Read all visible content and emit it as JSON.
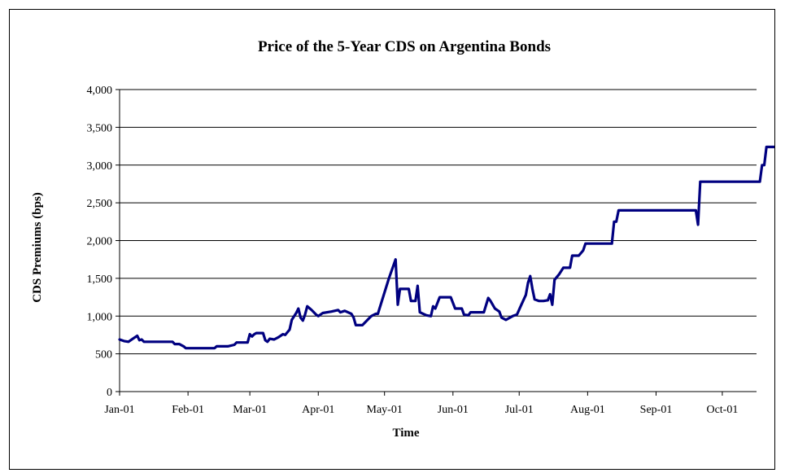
{
  "chart_data": {
    "type": "line",
    "title": "Price of the 5-Year CDS on Argentina Bonds",
    "xlabel": "Time",
    "ylabel": "CDS Premiums (bps)",
    "ylim": [
      0,
      4000
    ],
    "y_ticks": [
      "0",
      "500",
      "1,000",
      "1,500",
      "2,000",
      "2,500",
      "3,000",
      "3,500",
      "4,000"
    ],
    "x_ticks": [
      "Jan-01",
      "Feb-01",
      "Mar-01",
      "Apr-01",
      "May-01",
      "Jun-01",
      "Jul-01",
      "Aug-01",
      "Sep-01",
      "Oct-01"
    ],
    "grid": true,
    "line_color": "#000080",
    "series": [
      {
        "points": [
          [
            "2001-01-01",
            690
          ],
          [
            "2001-01-03",
            670
          ],
          [
            "2001-01-05",
            660
          ],
          [
            "2001-01-07",
            700
          ],
          [
            "2001-01-09",
            740
          ],
          [
            "2001-01-10",
            680
          ],
          [
            "2001-01-11",
            690
          ],
          [
            "2001-01-12",
            660
          ],
          [
            "2001-01-20",
            660
          ],
          [
            "2001-01-25",
            660
          ],
          [
            "2001-01-26",
            630
          ],
          [
            "2001-01-28",
            630
          ],
          [
            "2001-01-30",
            600
          ],
          [
            "2001-01-31",
            575
          ],
          [
            "2001-02-07",
            575
          ],
          [
            "2001-02-13",
            575
          ],
          [
            "2001-02-14",
            600
          ],
          [
            "2001-02-19",
            600
          ],
          [
            "2001-02-22",
            620
          ],
          [
            "2001-02-23",
            650
          ],
          [
            "2001-02-28",
            650
          ],
          [
            "2001-03-01",
            760
          ],
          [
            "2001-03-02",
            730
          ],
          [
            "2001-03-03",
            760
          ],
          [
            "2001-03-04",
            775
          ],
          [
            "2001-03-07",
            775
          ],
          [
            "2001-03-08",
            680
          ],
          [
            "2001-03-09",
            660
          ],
          [
            "2001-03-10",
            700
          ],
          [
            "2001-03-12",
            690
          ],
          [
            "2001-03-14",
            720
          ],
          [
            "2001-03-16",
            760
          ],
          [
            "2001-03-17",
            750
          ],
          [
            "2001-03-19",
            820
          ],
          [
            "2001-03-20",
            950
          ],
          [
            "2001-03-22",
            1040
          ],
          [
            "2001-03-23",
            1100
          ],
          [
            "2001-03-24",
            980
          ],
          [
            "2001-03-25",
            940
          ],
          [
            "2001-03-26",
            1020
          ],
          [
            "2001-03-27",
            1130
          ],
          [
            "2001-03-29",
            1080
          ],
          [
            "2001-03-31",
            1020
          ],
          [
            "2001-04-01",
            1000
          ],
          [
            "2001-04-03",
            1040
          ],
          [
            "2001-04-07",
            1060
          ],
          [
            "2001-04-10",
            1080
          ],
          [
            "2001-04-11",
            1050
          ],
          [
            "2001-04-13",
            1070
          ],
          [
            "2001-04-16",
            1030
          ],
          [
            "2001-04-17",
            980
          ],
          [
            "2001-04-18",
            880
          ],
          [
            "2001-04-21",
            880
          ],
          [
            "2001-04-23",
            940
          ],
          [
            "2001-04-25",
            1000
          ],
          [
            "2001-04-27",
            1030
          ],
          [
            "2001-04-28",
            1030
          ],
          [
            "2001-05-03",
            1500
          ],
          [
            "2001-05-06",
            1750
          ],
          [
            "2001-05-07",
            1150
          ],
          [
            "2001-05-08",
            1360
          ],
          [
            "2001-05-12",
            1360
          ],
          [
            "2001-05-13",
            1200
          ],
          [
            "2001-05-15",
            1200
          ],
          [
            "2001-05-16",
            1400
          ],
          [
            "2001-05-17",
            1050
          ],
          [
            "2001-05-20",
            1010
          ],
          [
            "2001-05-22",
            1000
          ],
          [
            "2001-05-23",
            1130
          ],
          [
            "2001-05-24",
            1100
          ],
          [
            "2001-05-26",
            1250
          ],
          [
            "2001-05-31",
            1250
          ],
          [
            "2001-06-02",
            1100
          ],
          [
            "2001-06-05",
            1100
          ],
          [
            "2001-06-06",
            1020
          ],
          [
            "2001-06-08",
            1010
          ],
          [
            "2001-06-09",
            1050
          ],
          [
            "2001-06-15",
            1050
          ],
          [
            "2001-06-17",
            1240
          ],
          [
            "2001-06-18",
            1200
          ],
          [
            "2001-06-20",
            1100
          ],
          [
            "2001-06-22",
            1060
          ],
          [
            "2001-06-23",
            980
          ],
          [
            "2001-06-25",
            950
          ],
          [
            "2001-06-28",
            1000
          ],
          [
            "2001-06-30",
            1020
          ],
          [
            "2001-07-02",
            1150
          ],
          [
            "2001-07-04",
            1280
          ],
          [
            "2001-07-05",
            1440
          ],
          [
            "2001-07-06",
            1530
          ],
          [
            "2001-07-07",
            1360
          ],
          [
            "2001-07-08",
            1220
          ],
          [
            "2001-07-10",
            1200
          ],
          [
            "2001-07-12",
            1200
          ],
          [
            "2001-07-14",
            1210
          ],
          [
            "2001-07-15",
            1290
          ],
          [
            "2001-07-16",
            1150
          ],
          [
            "2001-07-17",
            1480
          ],
          [
            "2001-07-19",
            1550
          ],
          [
            "2001-07-21",
            1640
          ],
          [
            "2001-07-24",
            1640
          ],
          [
            "2001-07-25",
            1800
          ],
          [
            "2001-07-28",
            1800
          ],
          [
            "2001-07-30",
            1870
          ],
          [
            "2001-07-31",
            1960
          ],
          [
            "2001-08-12",
            1960
          ],
          [
            "2001-08-13",
            2250
          ],
          [
            "2001-08-14",
            2250
          ],
          [
            "2001-08-15",
            2400
          ],
          [
            "2001-09-17",
            2400
          ],
          [
            "2001-09-19",
            2400
          ],
          [
            "2001-09-20",
            2210
          ],
          [
            "2001-09-21",
            2780
          ],
          [
            "2001-10-18",
            2780
          ],
          [
            "2001-10-19",
            3000
          ],
          [
            "2001-10-20",
            3000
          ],
          [
            "2001-10-21",
            3240
          ],
          [
            "2001-10-25",
            3240
          ],
          [
            "2001-10-28",
            3250
          ],
          [
            "2001-10-28",
            3340
          ]
        ]
      }
    ]
  }
}
